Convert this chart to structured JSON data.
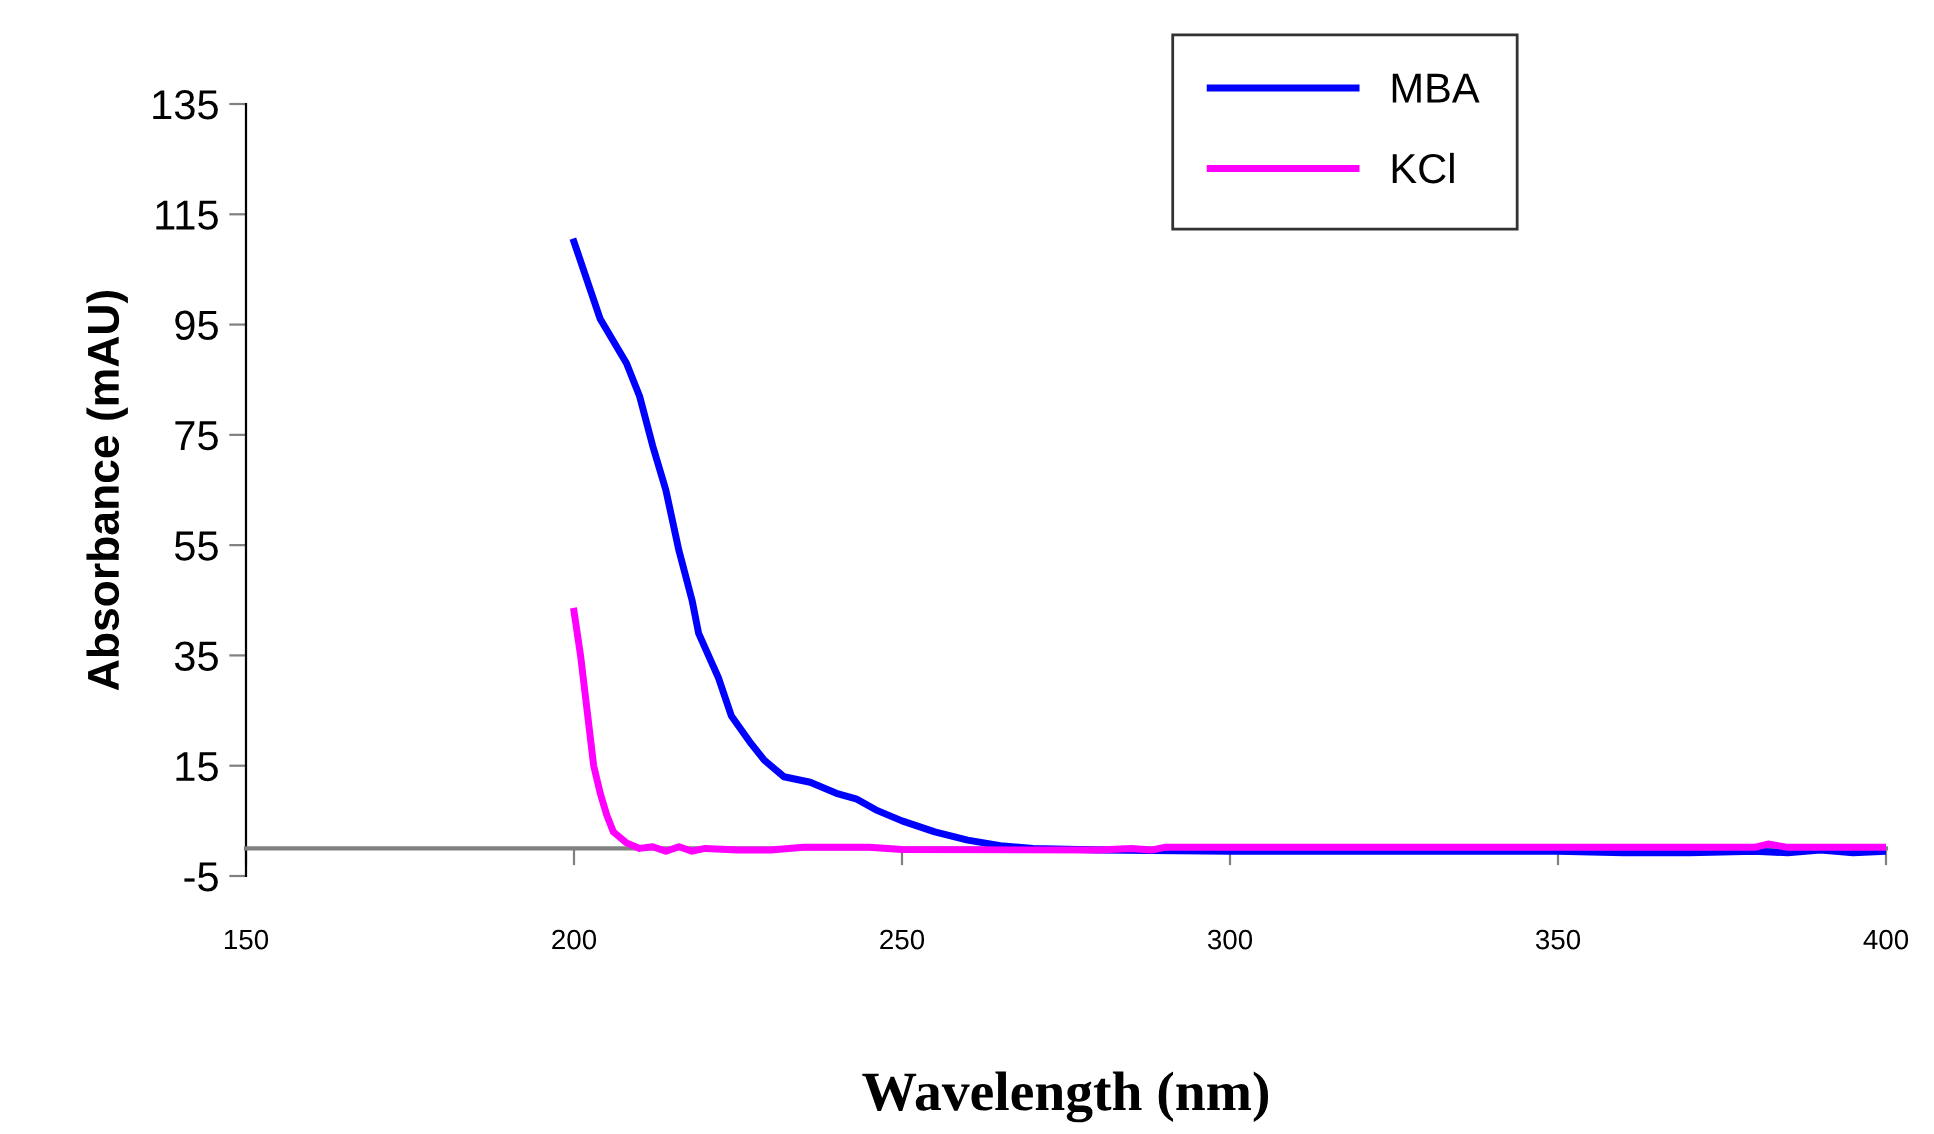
{
  "chart_data": {
    "type": "line",
    "xlabel": "Wavelength (nm)",
    "ylabel": "Absorbance (mAU)",
    "xlim": [
      150,
      400
    ],
    "ylim": [
      -5,
      135
    ],
    "xticks": [
      150,
      200,
      250,
      300,
      350,
      400
    ],
    "yticks": [
      -5,
      15,
      35,
      55,
      75,
      95,
      115,
      135
    ],
    "grid": false,
    "legend": "top right",
    "marker": "none",
    "line_style": "solid",
    "series": [
      {
        "name": "MBA",
        "color": "#0000ff",
        "x": [
          200,
          204,
          208,
          210,
          212,
          214,
          216,
          218,
          219,
          222,
          224,
          227,
          229,
          232,
          236,
          240,
          243,
          246,
          250,
          255,
          260,
          265,
          270,
          280,
          300,
          350,
          360,
          370,
          380,
          385,
          390,
          395,
          400
        ],
        "values": [
          110,
          96,
          88,
          82,
          73,
          65,
          54,
          45,
          39,
          31,
          24,
          19,
          16,
          13,
          12,
          10,
          9,
          7,
          5,
          3,
          1.5,
          0.5,
          0,
          -0.3,
          -0.5,
          -0.5,
          -0.8,
          -0.8,
          -0.5,
          -0.8,
          -0.3,
          -0.8,
          -0.5
        ]
      },
      {
        "name": "KCl",
        "color": "#ff00ff",
        "x": [
          200,
          201,
          202,
          203,
          204,
          205,
          206,
          208,
          210,
          212,
          214,
          216,
          218,
          220,
          225,
          230,
          235,
          245,
          250,
          280,
          285,
          288,
          290,
          380,
          382,
          385,
          400
        ],
        "values": [
          43,
          35,
          25,
          15,
          10,
          6,
          3,
          1,
          0,
          0.3,
          -0.5,
          0.3,
          -0.5,
          0,
          -0.3,
          -0.3,
          0.2,
          0.2,
          -0.2,
          -0.3,
          0,
          -0.3,
          0.2,
          0.2,
          0.8,
          0.2,
          0.2
        ]
      }
    ]
  }
}
